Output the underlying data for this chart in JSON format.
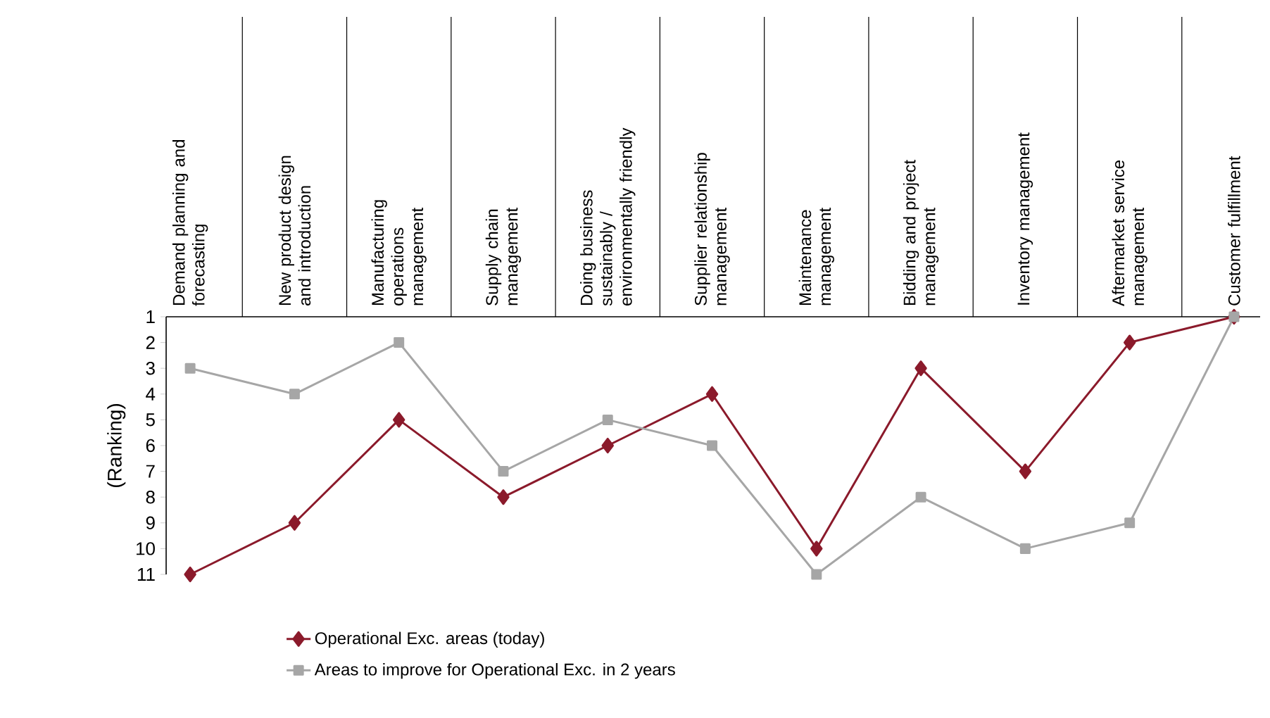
{
  "chart_data": {
    "type": "line",
    "categories": [
      "Demand planning and forecasting",
      "New product design and introduction",
      "Manufacturing operations management",
      "Supply chain management",
      "Doing business sustainably / environmentally friendly",
      "Supplier relationship management",
      "Maintenance management",
      "Bidding and project management",
      "Inventory management",
      "Aftermarket service management",
      "Customer fulfillment"
    ],
    "ylabel": "(Ranking)",
    "ylim": [
      11,
      1
    ],
    "yticks": [
      1,
      2,
      3,
      4,
      5,
      6,
      7,
      8,
      9,
      10,
      11
    ],
    "series": [
      {
        "name": "Operational Exc. areas (today)",
        "color": "#8b1a2b",
        "marker": "diamond",
        "values": [
          11,
          9,
          5,
          8,
          6,
          4,
          10,
          3,
          7,
          2,
          1
        ]
      },
      {
        "name": "Areas to improve for Operational Exc. in 2 years",
        "color": "#a6a6a6",
        "marker": "square",
        "values": [
          3,
          4,
          2,
          7,
          5,
          6,
          11,
          8,
          10,
          9,
          1
        ]
      }
    ],
    "legend": "bottom",
    "grid": false
  }
}
